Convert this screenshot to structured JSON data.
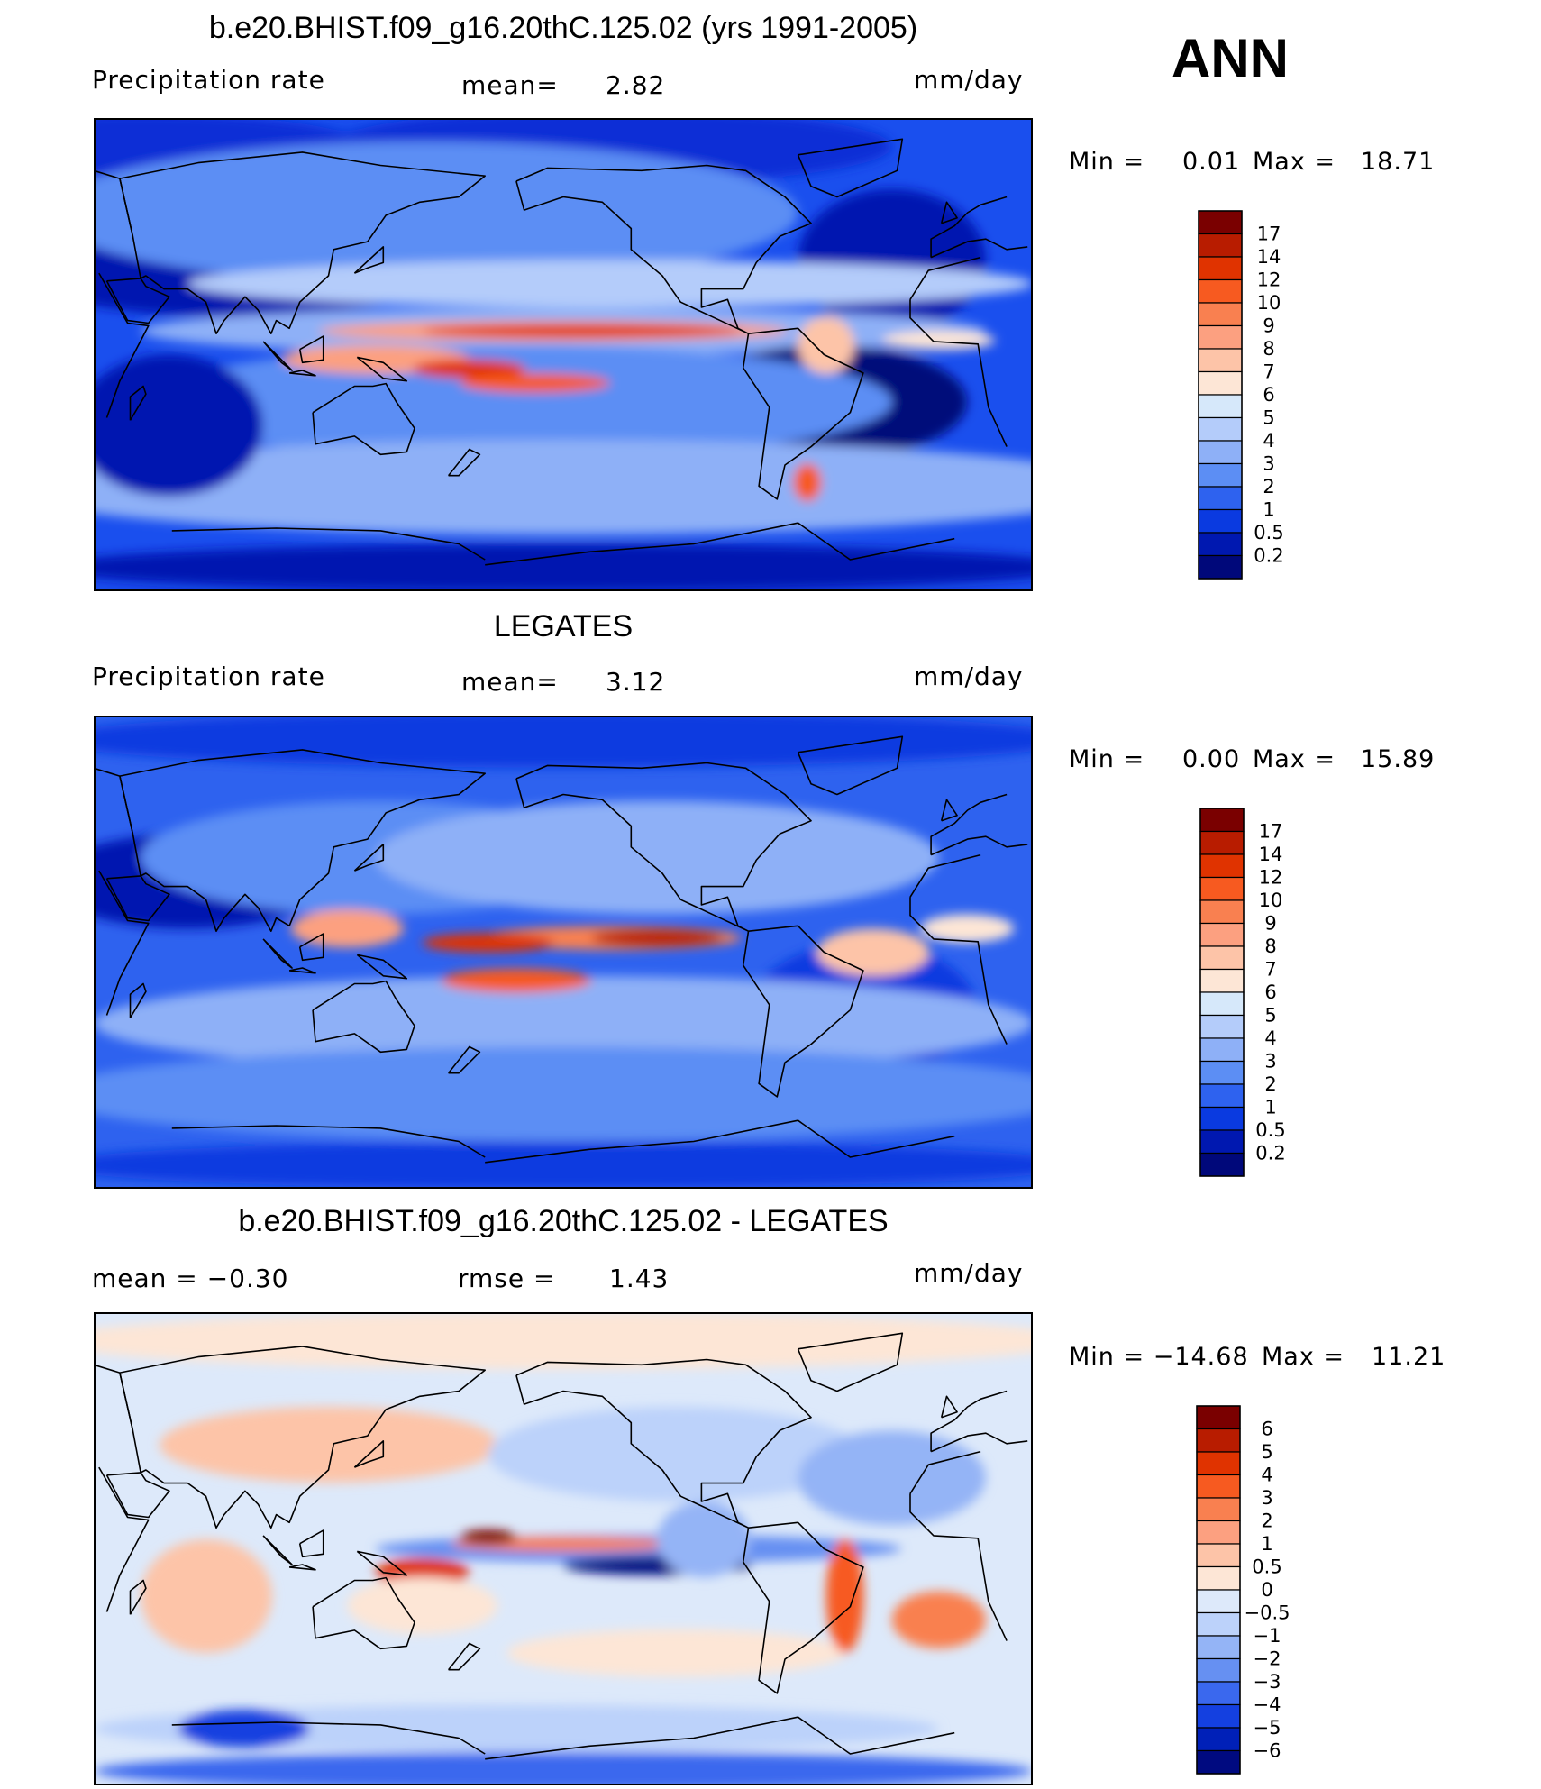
{
  "season": "ANN",
  "panels": [
    {
      "title": "b.e20.BHIST.f09_g16.20thC.125.02 (yrs 1991-2005)",
      "left_label": "Precipitation  rate",
      "stat_label": "mean=",
      "stat_value": "2.82",
      "units": "mm/day",
      "min_label": "Min  =",
      "min_value": "0.01",
      "max_label": "Max  =",
      "max_value": "18.71",
      "colorbar": {
        "labels": [
          "17",
          "14",
          "12",
          "10",
          "9",
          "8",
          "7",
          "6",
          "5",
          "4",
          "3",
          "2",
          "1",
          "0.5",
          "0.2"
        ],
        "colors": [
          "#7a0000",
          "#b81c00",
          "#e03300",
          "#f75a20",
          "#f98050",
          "#fca080",
          "#fdc4a8",
          "#fde6d6",
          "#d6e8fa",
          "#b4ccfa",
          "#8eb0f7",
          "#5c8ef4",
          "#2e62ef",
          "#0a3ae0",
          "#0018b0",
          "#00087a"
        ]
      },
      "map_field": "model"
    },
    {
      "title": "LEGATES",
      "left_label": "Precipitation  rate",
      "stat_label": "mean=",
      "stat_value": "3.12",
      "units": "mm/day",
      "min_label": "Min  =",
      "min_value": "0.00",
      "max_label": "Max  =",
      "max_value": "15.89",
      "colorbar": {
        "labels": [
          "17",
          "14",
          "12",
          "10",
          "9",
          "8",
          "7",
          "6",
          "5",
          "4",
          "3",
          "2",
          "1",
          "0.5",
          "0.2"
        ],
        "colors": [
          "#7a0000",
          "#b81c00",
          "#e03300",
          "#f75a20",
          "#f98050",
          "#fca080",
          "#fdc4a8",
          "#fde6d6",
          "#d6e8fa",
          "#b4ccfa",
          "#8eb0f7",
          "#5c8ef4",
          "#2e62ef",
          "#0a3ae0",
          "#0018b0",
          "#00087a"
        ]
      },
      "map_field": "obs"
    },
    {
      "title": "b.e20.BHIST.f09_g16.20thC.125.02 - LEGATES",
      "left_label": "mean  =    −0.30",
      "stat_label": "rmse  =",
      "stat_value": "1.43",
      "units": "mm/day",
      "min_label": "Min  = −14.68",
      "min_value": "",
      "max_label": "Max  =",
      "max_value": "11.21",
      "colorbar": {
        "labels": [
          "6",
          "5",
          "4",
          "3",
          "2",
          "1",
          "0.5",
          "0",
          "−0.5",
          "−1",
          "−2",
          "−3",
          "−4",
          "−5",
          "−6"
        ],
        "colors": [
          "#7a0000",
          "#b81c00",
          "#e03300",
          "#f75a20",
          "#f98050",
          "#fca080",
          "#fdc4a8",
          "#fde6d6",
          "#dde9fa",
          "#bcd2fa",
          "#94b4f6",
          "#6690f2",
          "#3a68ee",
          "#1440e0",
          "#0020b8",
          "#000a80"
        ]
      },
      "map_field": "diff"
    }
  ]
}
